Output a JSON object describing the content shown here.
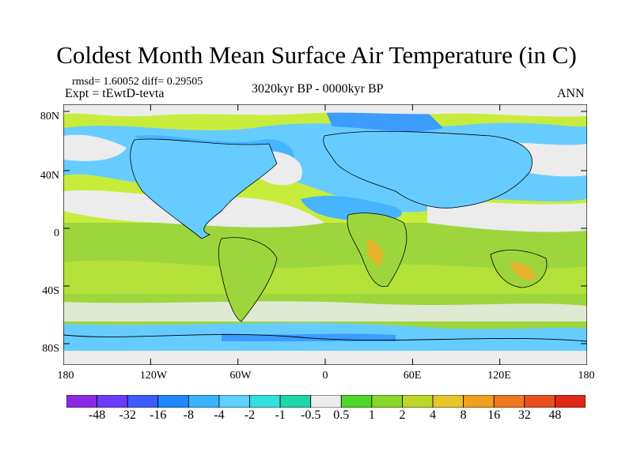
{
  "title": "Coldest Month Mean Surface Air Temperature (in C)",
  "stats": "rmsd= 1.60052 diff= 0.29505",
  "experiment": "Expt = tEwtD-tevta",
  "period": "3020kyr BP - 0000kyr BP",
  "season": "ANN",
  "map": {
    "projection": "cylindrical-equidistant",
    "lat_labels": [
      "80N",
      "40N",
      "0",
      "40S",
      "80S"
    ],
    "lon_labels": [
      "180",
      "120W",
      "60W",
      "0",
      "60E",
      "120E",
      "180"
    ],
    "colors": {
      "ocean_cold_dominant": "#66ccff",
      "neutral": "#ececec",
      "warm_dominant": "#9cd63c",
      "coastline": "#000000"
    }
  },
  "colorbar": {
    "labels": [
      "-48",
      "-32",
      "-16",
      "-8",
      "-4",
      "-2",
      "-1",
      "-0.5",
      "0.5",
      "1",
      "2",
      "4",
      "8",
      "16",
      "32",
      "48"
    ],
    "colors": [
      "#8a2be2",
      "#6a3cff",
      "#3c5cff",
      "#1e88ff",
      "#3ab4ff",
      "#5fd0ff",
      "#33e0e0",
      "#1ed6a8",
      "#ececec",
      "#4ed62c",
      "#8ad62a",
      "#bcd62a",
      "#e6c42a",
      "#f0a020",
      "#f07820",
      "#e85020",
      "#e02818"
    ]
  }
}
